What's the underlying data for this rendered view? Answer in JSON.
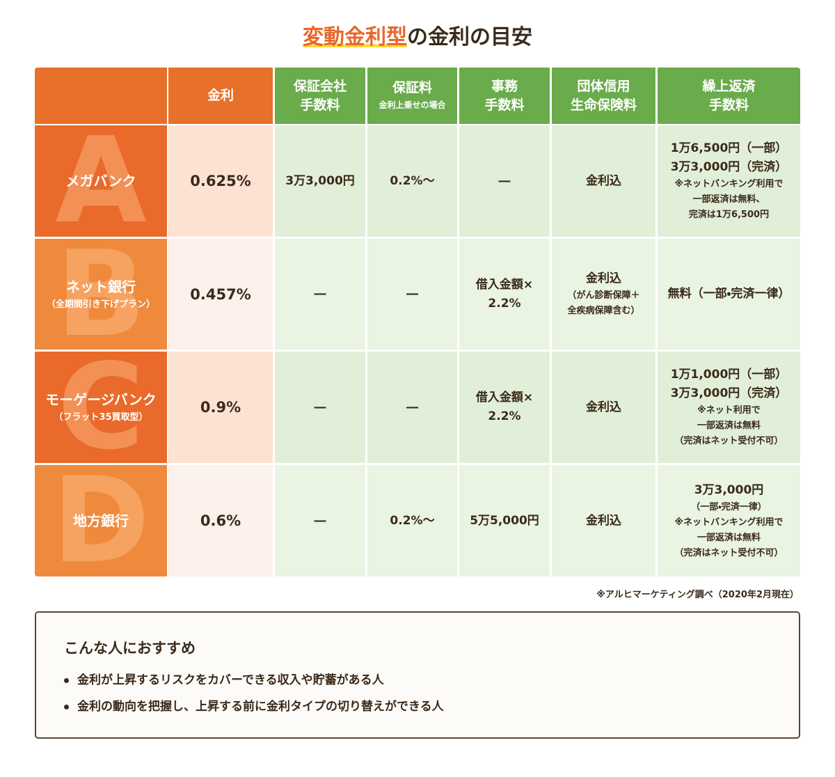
{
  "title": {
    "highlight": "変動金利型",
    "rest": "の金利の目安"
  },
  "header": [
    {
      "lines": [
        "金利"
      ]
    },
    {
      "lines": [
        "保証会社",
        "手数料"
      ]
    },
    {
      "lines": [
        "保証料"
      ],
      "note": [
        "金利上乗せの場合"
      ]
    },
    {
      "lines": [
        "事務",
        "手数料"
      ]
    },
    {
      "lines": [
        "団体信用",
        "生命保険料"
      ]
    },
    {
      "lines": [
        "繰上返済",
        "手数料"
      ]
    }
  ],
  "rows": [
    {
      "letter": "A",
      "name": "メガバンク",
      "rate": "0.625%",
      "cells": [
        {
          "lines": [
            "3万3,000円"
          ]
        },
        {
          "lines": [
            "0.2%〜"
          ]
        },
        {
          "lines": [
            "―"
          ]
        },
        {
          "lines": [
            "金利込"
          ]
        },
        {
          "lines": [
            "1万6,500円（一部）",
            "3万3,000円（完済）"
          ],
          "note": [
            "※ネットバンキング利用で",
            "一部返済は無料、",
            "完済は1万6,500円"
          ]
        }
      ]
    },
    {
      "letter": "B",
      "name": "ネット銀行",
      "sub": "（全期間引き下げプラン）",
      "rate": "0.457%",
      "cells": [
        {
          "lines": [
            "―"
          ]
        },
        {
          "lines": [
            "―"
          ]
        },
        {
          "lines": [
            "借入金額×",
            "2.2%"
          ]
        },
        {
          "lines": [
            "金利込"
          ],
          "note": [
            "（がん診断保障＋",
            "全疾病保障含む）"
          ]
        },
        {
          "lines": [
            "無料（一部・完済一律）"
          ]
        }
      ]
    },
    {
      "letter": "C",
      "name": "モーゲージバンク",
      "sub": "（フラット35買取型）",
      "rate": "0.9%",
      "cells": [
        {
          "lines": [
            "―"
          ]
        },
        {
          "lines": [
            "―"
          ]
        },
        {
          "lines": [
            "借入金額×",
            "2.2%"
          ]
        },
        {
          "lines": [
            "金利込"
          ]
        },
        {
          "lines": [
            "1万1,000円（一部）",
            "3万3,000円（完済）"
          ],
          "note": [
            "※ネット利用で",
            "一部返済は無料",
            "（完済はネット受付不可）"
          ]
        }
      ]
    },
    {
      "letter": "D",
      "name": "地方銀行",
      "rate": "0.6%",
      "cells": [
        {
          "lines": [
            "―"
          ]
        },
        {
          "lines": [
            "0.2%〜"
          ]
        },
        {
          "lines": [
            "5万5,000円"
          ]
        },
        {
          "lines": [
            "金利込"
          ]
        },
        {
          "lines": [
            "3万3,000円"
          ],
          "note": [
            "（一部・完済一律）",
            "※ネットバンキング利用で",
            "一部返済は無料",
            "（完済はネット受付不可）"
          ]
        }
      ]
    }
  ],
  "footnote": "※アルヒマーケティング調べ（2020年2月現在）",
  "recommend": {
    "title": "こんな人におすすめ",
    "items": [
      "金利が上昇するリスクをカバーできる収入や貯蓄がある人",
      "金利の動向を把握し、上昇する前に金利タイプの切り替えができる人"
    ]
  }
}
